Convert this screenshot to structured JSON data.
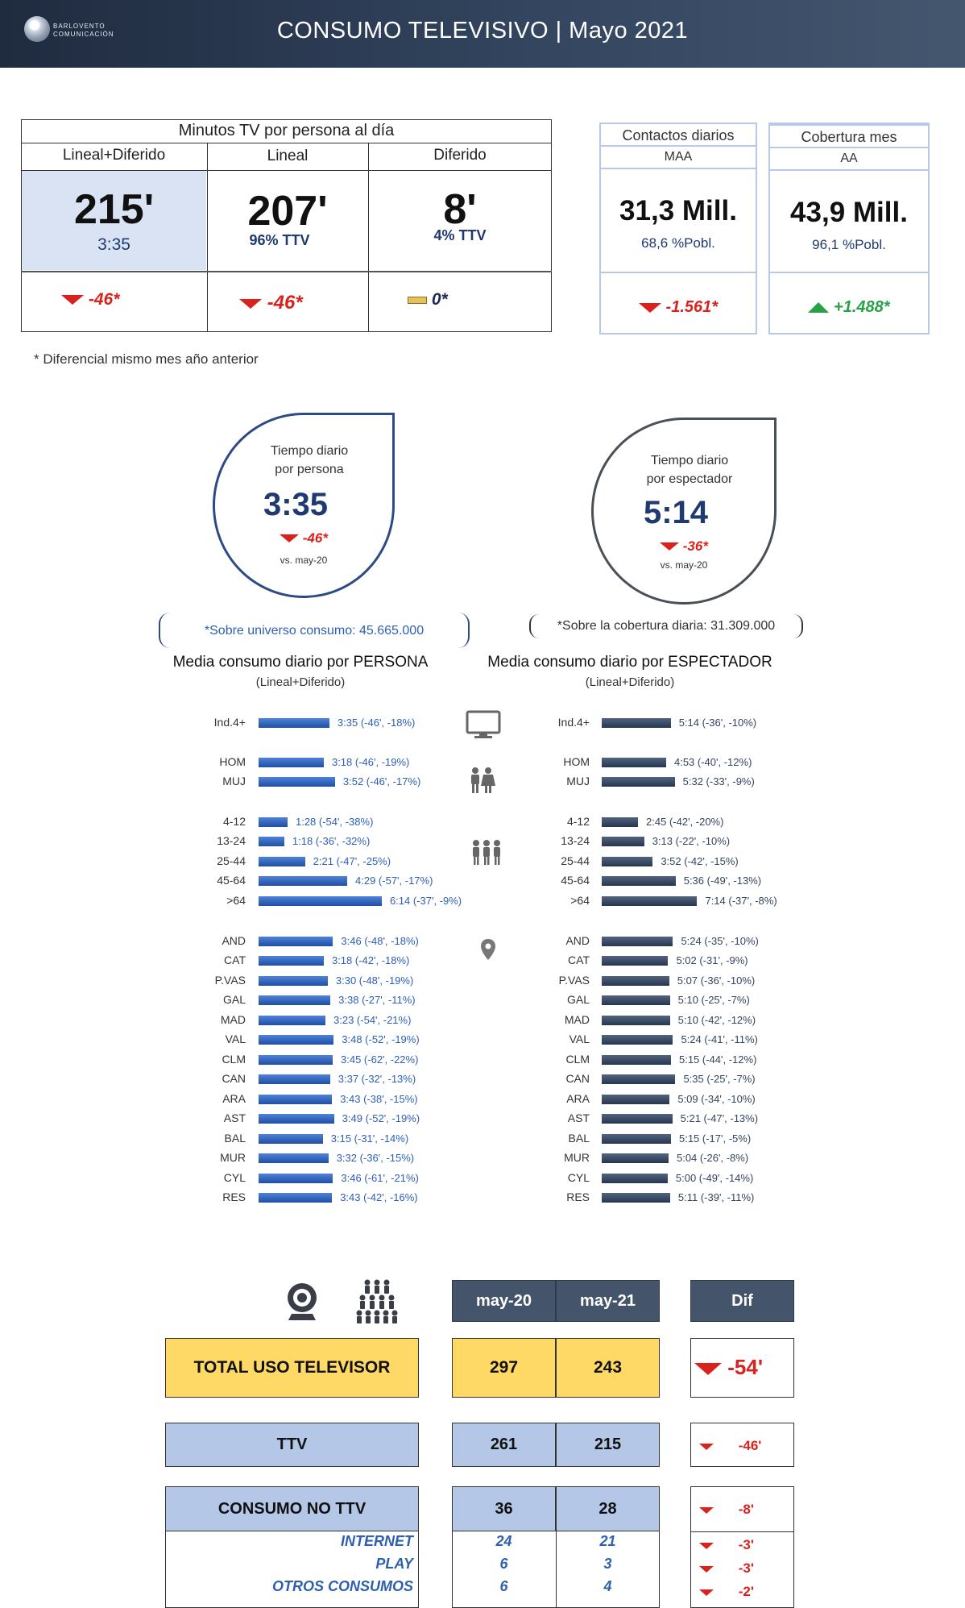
{
  "header": {
    "logo_line1": "BARLOVENTO",
    "logo_line2": "COMUNICACIÓN",
    "title": "CONSUMO TELEVISIVO | Mayo 2021"
  },
  "minutos": {
    "title": "Minutos TV por persona al día",
    "cols": [
      {
        "label": "Lineal+Diferido",
        "value": "215'",
        "sub": "3:35",
        "diff": "-46*"
      },
      {
        "label": "Lineal",
        "value": "207'",
        "sub": "96% TTV",
        "diff": "-46*"
      },
      {
        "label": "Diferido",
        "value": "8'",
        "sub": "4% TTV",
        "diff": "0*"
      }
    ]
  },
  "contactos": {
    "title": "Contactos diarios",
    "sub": "MAA",
    "value": "31,3 Mill.",
    "pobl": "68,6 %Pobl.",
    "diff": "-1.561*"
  },
  "cobertura": {
    "title": "Cobertura mes",
    "sub": "AA",
    "value": "43,9 Mill.",
    "pobl": "96,1 %Pobl.",
    "diff": "+1.488*"
  },
  "footnote": "* Diferencial mismo mes año anterior",
  "persona": {
    "drop_line1": "Tiempo diario",
    "drop_line2": "por persona",
    "value": "3:35",
    "diff": "-46*",
    "vs": "vs. may-20",
    "universe": "*Sobre universo consumo: 45.665.000",
    "title": "Media consumo diario por PERSONA",
    "subtitle": "(Lineal+Diferido)"
  },
  "espectador": {
    "drop_line1": "Tiempo diario",
    "drop_line2": "por espectador",
    "value": "5:14",
    "diff": "-36*",
    "vs": "vs. may-20",
    "universe": "*Sobre la cobertura diaria: 31.309.000",
    "title": "Media consumo diario por ESPECTADOR",
    "subtitle": "(Lineal+Diferido)"
  },
  "icons": [
    "tv-icon",
    "couple-icon",
    "group-icon",
    "map-pin-icon",
    "webcam-icon",
    "crowd-icon"
  ],
  "colors": {
    "header": "#33455f",
    "persona_bar": "#2d5fb8",
    "espectador_bar": "#33455f",
    "negative": "#d9221d",
    "positive": "#27a046",
    "yellow": "#ffd966",
    "light_blue": "#b4c7e7"
  },
  "chart_data": [
    {
      "type": "bar",
      "title": "Media consumo diario por PERSONA",
      "subtitle": "(Lineal+Diferido)",
      "unit": "minutes",
      "categories": [
        "Ind.4+",
        "HOM",
        "MUJ",
        "4-12",
        "13-24",
        "25-44",
        "45-64",
        ">64",
        "AND",
        "CAT",
        "P.VAS",
        "GAL",
        "MAD",
        "VAL",
        "CLM",
        "CAN",
        "ARA",
        "AST",
        "BAL",
        "MUR",
        "CYL",
        "RES"
      ],
      "values": [
        215,
        198,
        232,
        88,
        78,
        141,
        269,
        374,
        226,
        198,
        210,
        218,
        203,
        228,
        225,
        217,
        223,
        229,
        195,
        212,
        226,
        223
      ],
      "labels": [
        "3:35 (-46', -18%)",
        "3:18 (-46', -19%)",
        "3:52 (-46', -17%)",
        "1:28 (-54', -38%)",
        "1:18 (-36', -32%)",
        "2:21 (-47', -25%)",
        "4:29 (-57', -17%)",
        "6:14 (-37', -9%)",
        "3:46 (-48', -18%)",
        "3:18 (-42', -18%)",
        "3:30 (-48', -19%)",
        "3:38 (-27', -11%)",
        "3:23 (-54', -21%)",
        "3:48 (-52', -19%)",
        "3:45 (-62', -22%)",
        "3:37 (-32', -13%)",
        "3:43 (-38', -15%)",
        "3:49 (-52', -19%)",
        "3:15 (-31', -14%)",
        "3:32 (-36', -15%)",
        "3:46 (-61', -21%)",
        "3:43 (-42', -16%)"
      ]
    },
    {
      "type": "bar",
      "title": "Media consumo diario por ESPECTADOR",
      "subtitle": "(Lineal+Diferido)",
      "unit": "minutes",
      "categories": [
        "Ind.4+",
        "HOM",
        "MUJ",
        "4-12",
        "13-24",
        "25-44",
        "45-64",
        ">64",
        "AND",
        "CAT",
        "P.VAS",
        "GAL",
        "MAD",
        "VAL",
        "CLM",
        "CAN",
        "ARA",
        "AST",
        "BAL",
        "MUR",
        "CYL",
        "RES"
      ],
      "values": [
        314,
        293,
        332,
        165,
        193,
        232,
        336,
        434,
        324,
        302,
        307,
        310,
        310,
        324,
        315,
        335,
        309,
        321,
        315,
        304,
        300,
        311
      ],
      "labels": [
        "5:14 (-36', -10%)",
        "4:53 (-40', -12%)",
        "5:32 (-33', -9%)",
        "2:45 (-42', -20%)",
        "3:13 (-22', -10%)",
        "3:52 (-42', -15%)",
        "5:36 (-49', -13%)",
        "7:14 (-37', -8%)",
        "5:24 (-35', -10%)",
        "5:02 (-31', -9%)",
        "5:07 (-36', -10%)",
        "5:10 (-25', -7%)",
        "5:10 (-42', -12%)",
        "5:24 (-41', -11%)",
        "5:15 (-44', -12%)",
        "5:35 (-25', -7%)",
        "5:09 (-34', -10%)",
        "5:21 (-47', -13%)",
        "5:15 (-17', -5%)",
        "5:04 (-26', -8%)",
        "5:00 (-49', -14%)",
        "5:11 (-39', -11%)"
      ]
    }
  ],
  "uso": {
    "headers": [
      "may-20",
      "may-21",
      "Dif"
    ],
    "total": {
      "label": "TOTAL USO TELEVISOR",
      "may20": "297",
      "may21": "243",
      "dif": "-54'"
    },
    "ttv": {
      "label": "TTV",
      "may20": "261",
      "may21": "215",
      "dif": "-46'"
    },
    "no_ttv": {
      "label": "CONSUMO NO TTV",
      "may20": "36",
      "may21": "28",
      "dif": "-8'"
    },
    "sub_rows": [
      {
        "label": "INTERNET",
        "may20": "24",
        "may21": "21",
        "dif": "-3'"
      },
      {
        "label": "PLAY",
        "may20": "6",
        "may21": "3",
        "dif": "-3'"
      },
      {
        "label": "OTROS CONSUMOS",
        "may20": "6",
        "may21": "4",
        "dif": "-2'"
      }
    ]
  }
}
